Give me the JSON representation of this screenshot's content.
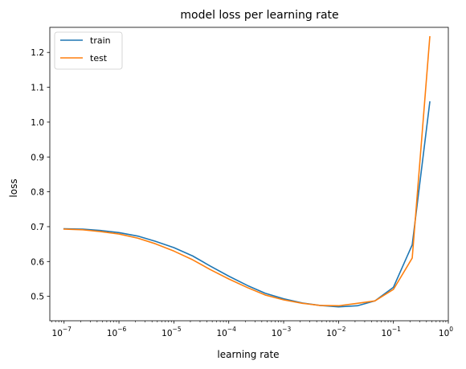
{
  "chart_data": {
    "type": "line",
    "title": "model loss per learning rate",
    "xlabel": "learning rate",
    "ylabel": "loss",
    "xscale": "log",
    "xlim": [
      5.5e-08,
      1.0
    ],
    "ylim": [
      0.43,
      1.272
    ],
    "x_ticks": [
      {
        "exp": -7,
        "label": "10"
      },
      {
        "exp": -6,
        "label": "10"
      },
      {
        "exp": -5,
        "label": "10"
      },
      {
        "exp": -4,
        "label": "10"
      },
      {
        "exp": -3,
        "label": "10"
      },
      {
        "exp": -2,
        "label": "10"
      },
      {
        "exp": -1,
        "label": "10"
      },
      {
        "exp": 0,
        "label": "10"
      }
    ],
    "x_tick_exponents": [
      "−7",
      "−6",
      "−5",
      "−4",
      "−3",
      "−2",
      "−1",
      "0"
    ],
    "y_ticks": [
      0.5,
      0.6,
      0.7,
      0.8,
      0.9,
      1.0,
      1.1,
      1.2
    ],
    "y_tick_labels": [
      "0.5",
      "0.6",
      "0.7",
      "0.8",
      "0.9",
      "1.0",
      "1.1",
      "1.2"
    ],
    "x": [
      1e-07,
      2.2e-07,
      4.6e-07,
      1e-06,
      2.2e-06,
      4.6e-06,
      1e-05,
      2.2e-05,
      4.6e-05,
      0.0001,
      0.00022,
      0.00046,
      0.001,
      0.0022,
      0.0046,
      0.01,
      0.022,
      0.046,
      0.1,
      0.22,
      0.46
    ],
    "series": [
      {
        "name": "train",
        "color": "#1f77b4",
        "values": [
          0.694,
          0.693,
          0.689,
          0.683,
          0.673,
          0.658,
          0.64,
          0.616,
          0.587,
          0.558,
          0.531,
          0.509,
          0.493,
          0.481,
          0.474,
          0.47,
          0.473,
          0.487,
          0.526,
          0.648,
          1.058
        ]
      },
      {
        "name": "test",
        "color": "#ff7f0e",
        "values": [
          0.693,
          0.691,
          0.686,
          0.679,
          0.667,
          0.651,
          0.63,
          0.605,
          0.577,
          0.55,
          0.525,
          0.504,
          0.49,
          0.48,
          0.474,
          0.473,
          0.48,
          0.487,
          0.52,
          0.61,
          1.245
        ]
      }
    ],
    "legend": {
      "position": "top-left"
    },
    "grid": false
  }
}
